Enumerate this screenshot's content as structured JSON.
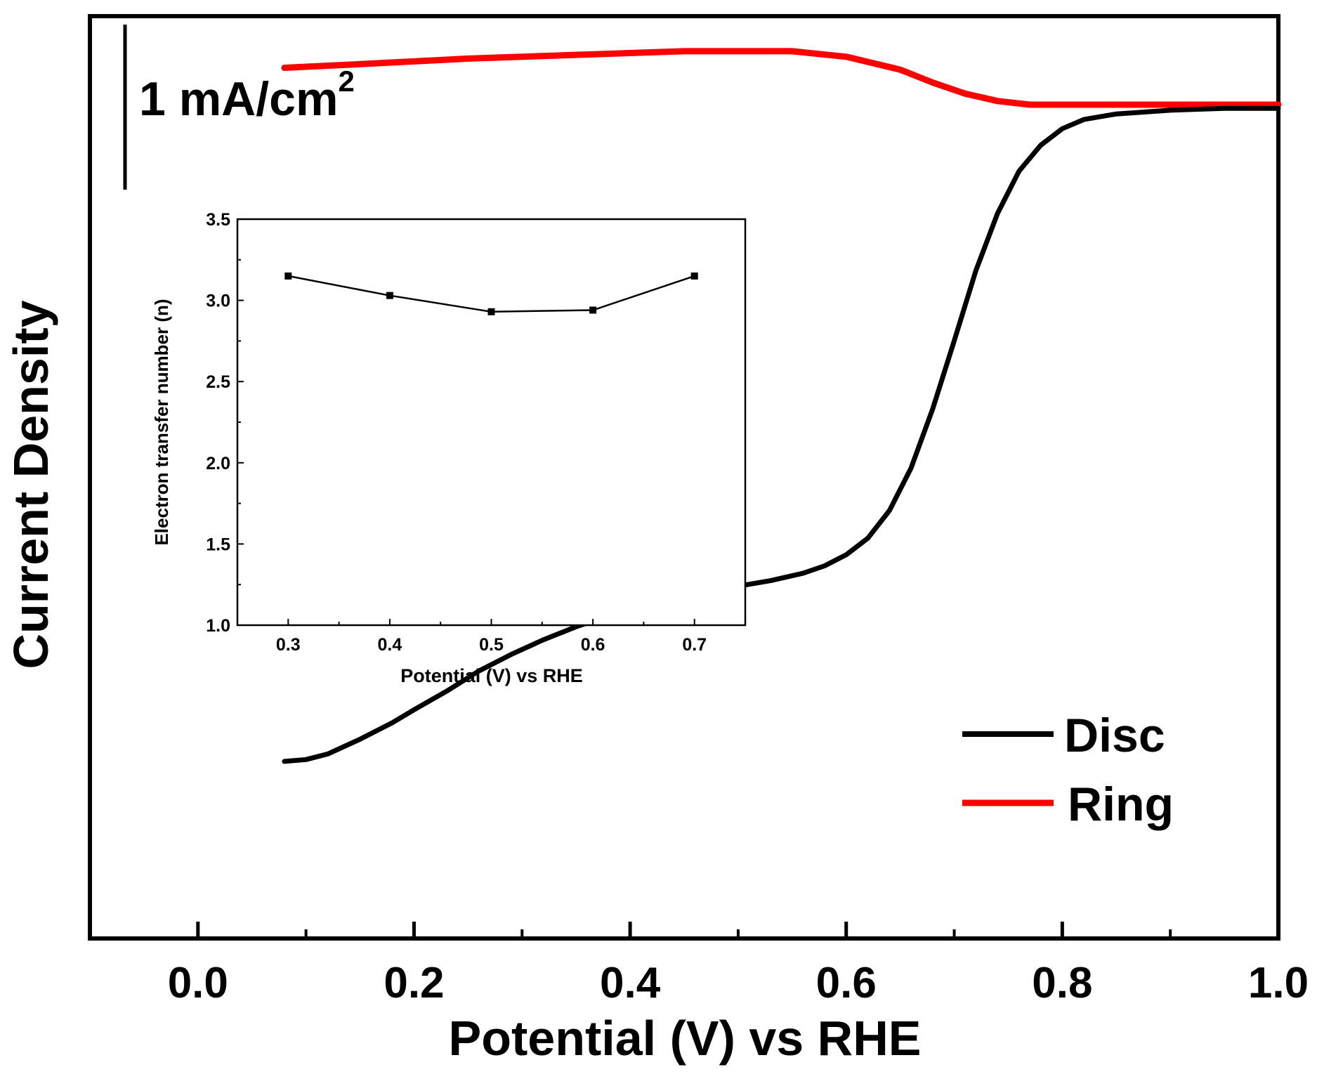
{
  "chart_data": [
    {
      "type": "line",
      "xlabel": "Potential (V) vs RHE",
      "ylabel": "Current Density",
      "xlim": [
        -0.1,
        1.0
      ],
      "xticks": [
        0.0,
        0.2,
        0.4,
        0.6,
        0.8,
        1.0
      ],
      "xtick_labels": [
        "0.0",
        "0.2",
        "0.4",
        "0.6",
        "0.8",
        "1.0"
      ],
      "yaxis_tick_labels": "none",
      "scale_bar_label": "1 mA/cm",
      "scale_bar_superscript": "2",
      "scale_bar_value": 1,
      "ylim": [
        -3.5,
        1.5
      ],
      "legend": {
        "placement": "lower-right",
        "entries": [
          "Disc",
          "Ring"
        ]
      },
      "series": [
        {
          "name": "Disc",
          "color": "#000000",
          "x": [
            0.08,
            0.1,
            0.12,
            0.15,
            0.18,
            0.2,
            0.23,
            0.26,
            0.29,
            0.32,
            0.35,
            0.38,
            0.41,
            0.44,
            0.47,
            0.5,
            0.53,
            0.56,
            0.58,
            0.6,
            0.62,
            0.64,
            0.66,
            0.68,
            0.7,
            0.72,
            0.74,
            0.76,
            0.78,
            0.8,
            0.82,
            0.85,
            0.9,
            0.95,
            1.0
          ],
          "y": [
            -2.54,
            -2.53,
            -2.5,
            -2.42,
            -2.33,
            -2.26,
            -2.16,
            -2.05,
            -1.96,
            -1.88,
            -1.81,
            -1.75,
            -1.7,
            -1.66,
            -1.62,
            -1.59,
            -1.56,
            -1.52,
            -1.48,
            -1.42,
            -1.33,
            -1.18,
            -0.95,
            -0.63,
            -0.26,
            0.12,
            0.43,
            0.66,
            0.8,
            0.89,
            0.94,
            0.97,
            0.99,
            1.0,
            1.0
          ]
        },
        {
          "name": "Ring",
          "color": "#ff0000",
          "x": [
            0.08,
            0.15,
            0.25,
            0.35,
            0.45,
            0.5,
            0.55,
            0.6,
            0.65,
            0.68,
            0.71,
            0.74,
            0.77,
            0.8,
            0.85,
            0.9,
            1.0
          ],
          "y": [
            1.22,
            1.24,
            1.27,
            1.29,
            1.31,
            1.31,
            1.31,
            1.28,
            1.21,
            1.14,
            1.08,
            1.04,
            1.02,
            1.02,
            1.02,
            1.02,
            1.02
          ]
        }
      ]
    },
    {
      "type": "line",
      "inset": true,
      "xlabel": "Potential (V) vs RHE",
      "ylabel": "Electron transfer number (n)",
      "xlim": [
        0.25,
        0.75
      ],
      "ylim": [
        1.0,
        3.5
      ],
      "xticks": [
        0.3,
        0.4,
        0.5,
        0.6,
        0.7
      ],
      "xtick_labels": [
        "0.3",
        "0.4",
        "0.5",
        "0.6",
        "0.7"
      ],
      "yticks": [
        1.0,
        1.5,
        2.0,
        2.5,
        3.0,
        3.5
      ],
      "ytick_labels": [
        "1.0",
        "1.5",
        "2.0",
        "2.5",
        "3.0",
        "3.5"
      ],
      "series": [
        {
          "name": "n",
          "color": "#000000",
          "x": [
            0.3,
            0.4,
            0.5,
            0.6,
            0.7
          ],
          "y": [
            3.15,
            3.03,
            2.93,
            2.94,
            3.15
          ]
        }
      ]
    }
  ]
}
